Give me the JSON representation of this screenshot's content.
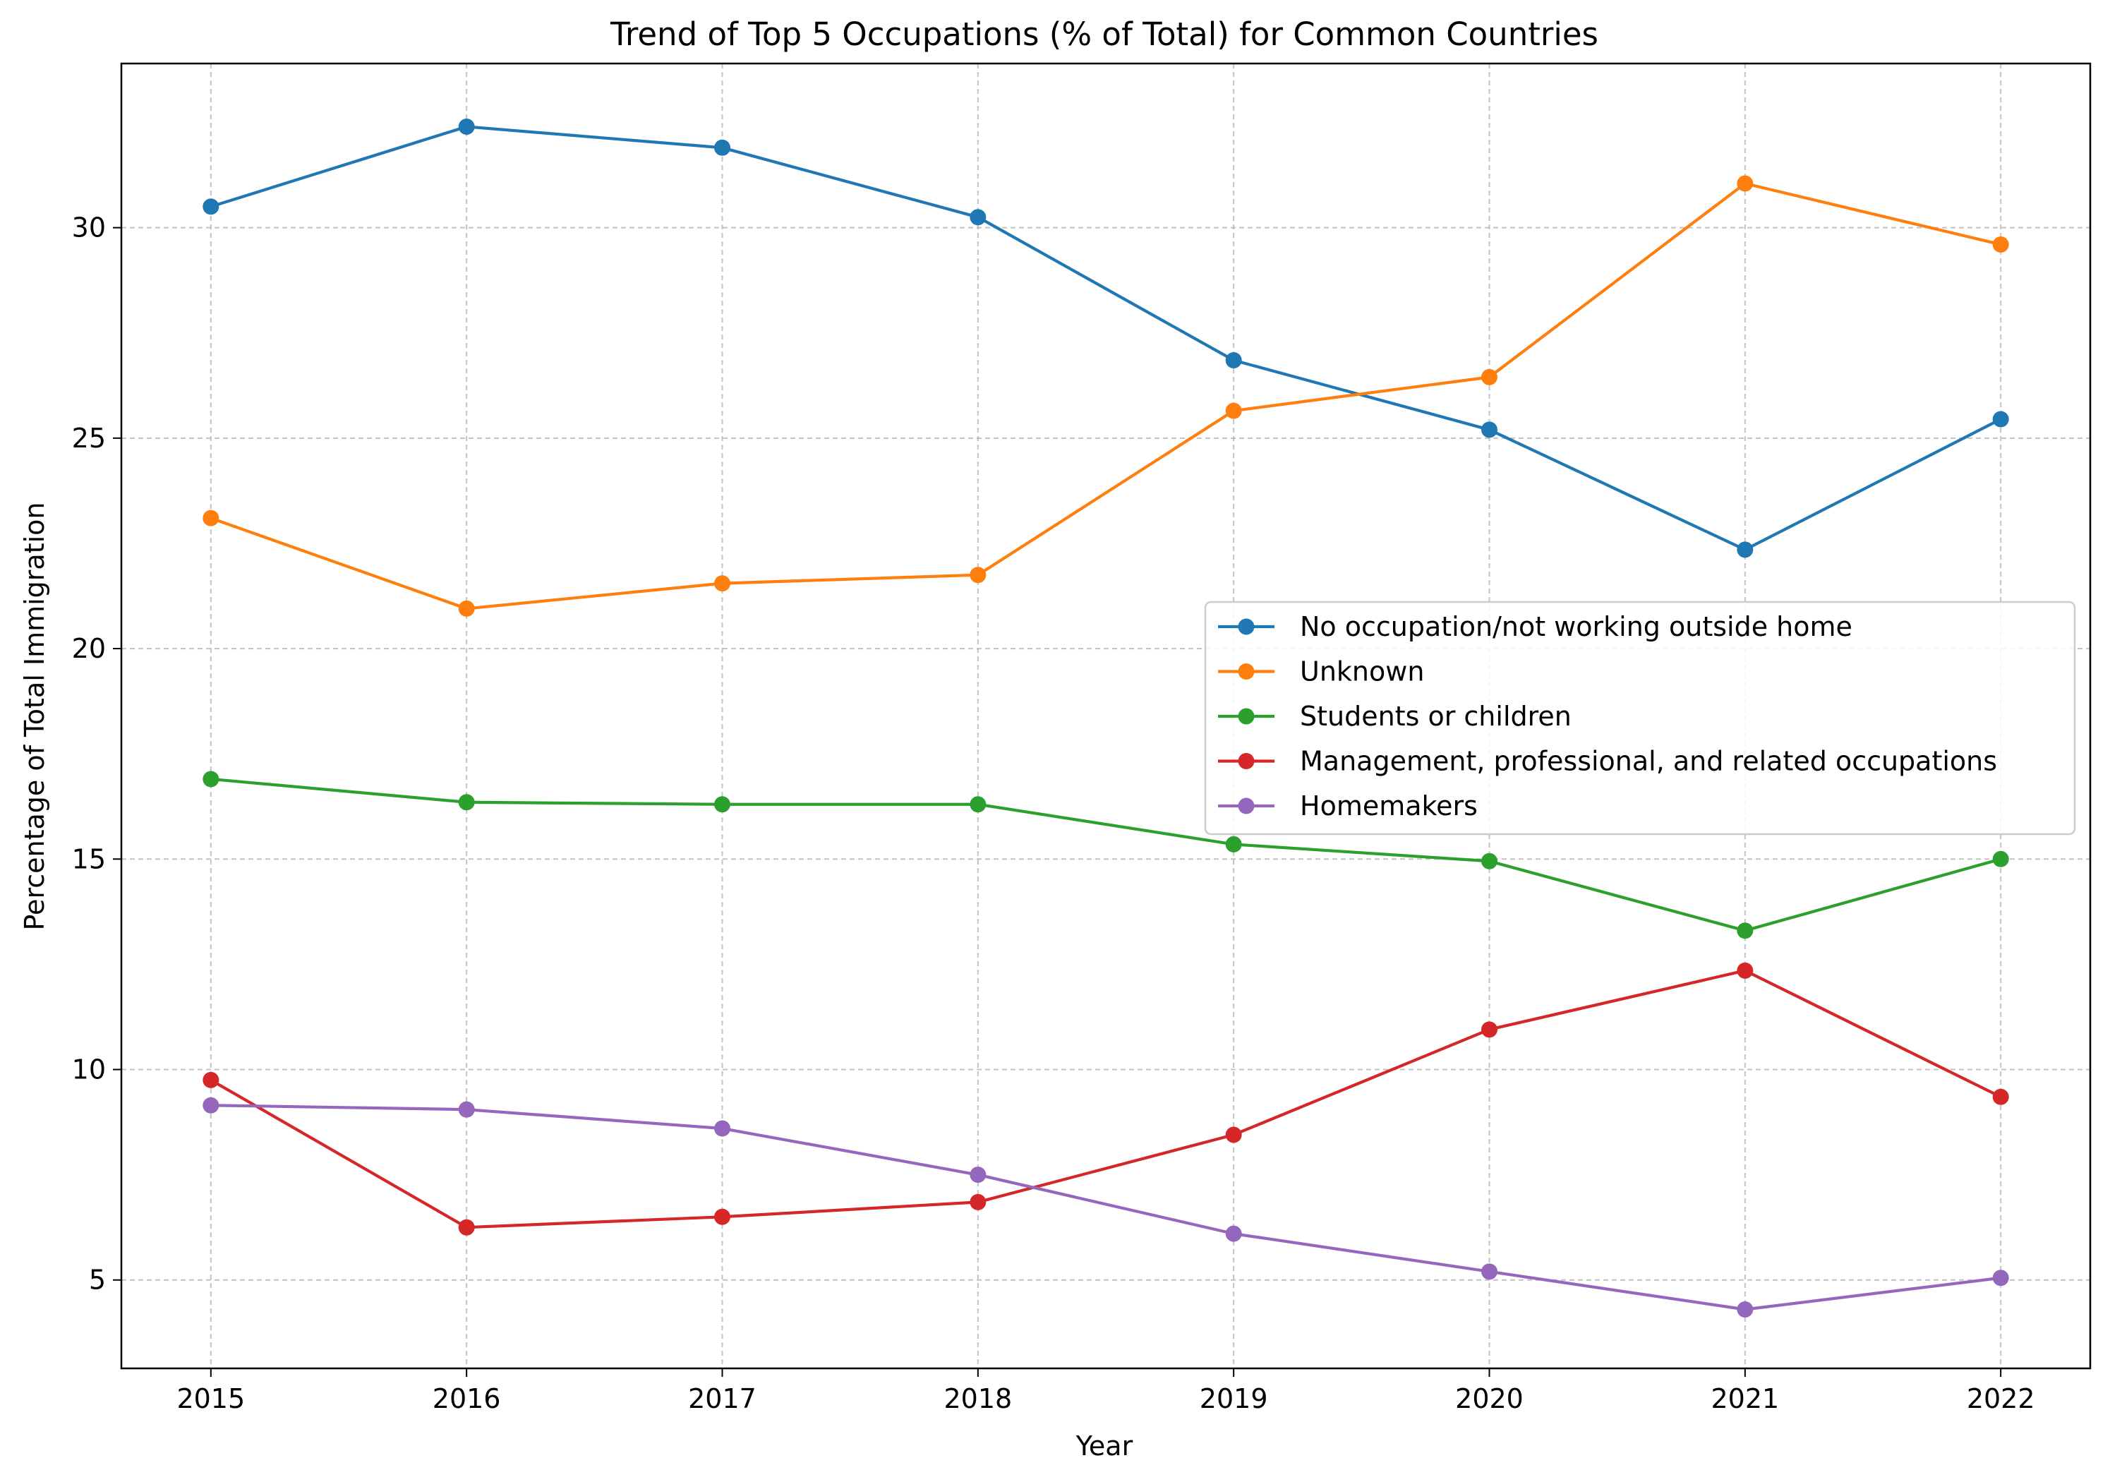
{
  "chart_data": {
    "type": "line",
    "title": "Trend of Top 5 Occupations (% of Total) for Common Countries",
    "xlabel": "Year",
    "ylabel": "Percentage of Total Immigration",
    "x": [
      "2015",
      "2016",
      "2017",
      "2018",
      "2019",
      "2020",
      "2021",
      "2022"
    ],
    "xlim": [
      2014.65,
      2022.35
    ],
    "ylim": [
      2.9,
      33.9
    ],
    "yticks": [
      5,
      10,
      15,
      20,
      25,
      30
    ],
    "grid": true,
    "legend_position": "center-right",
    "series": [
      {
        "name": "No occupation/not working outside home",
        "color": "#1f77b4",
        "values": [
          30.5,
          32.4,
          31.9,
          30.25,
          26.85,
          25.2,
          22.35,
          25.45
        ]
      },
      {
        "name": "Unknown",
        "color": "#ff7f0e",
        "values": [
          23.1,
          20.95,
          21.55,
          21.75,
          25.65,
          26.45,
          31.05,
          29.6
        ]
      },
      {
        "name": "Students or children",
        "color": "#2ca02c",
        "values": [
          16.9,
          16.35,
          16.3,
          16.3,
          15.35,
          14.95,
          13.3,
          15.0
        ]
      },
      {
        "name": "Management, professional, and related occupations",
        "color": "#d62728",
        "values": [
          9.75,
          6.25,
          6.5,
          6.85,
          8.45,
          10.95,
          12.35,
          9.35
        ]
      },
      {
        "name": "Homemakers",
        "color": "#9467bd",
        "values": [
          9.15,
          9.05,
          8.6,
          7.5,
          6.1,
          5.2,
          4.3,
          5.05
        ]
      }
    ]
  }
}
